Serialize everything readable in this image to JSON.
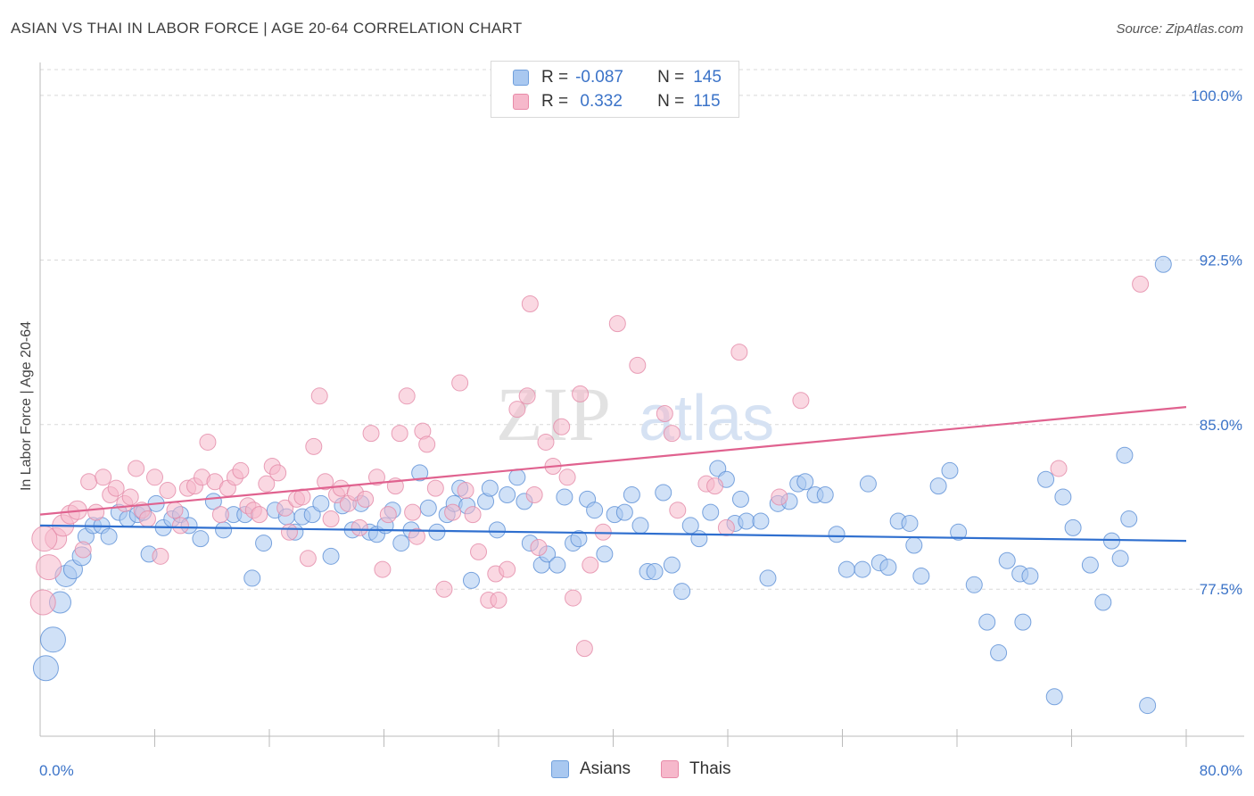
{
  "header": {
    "title": "ASIAN VS THAI IN LABOR FORCE | AGE 20-64 CORRELATION CHART",
    "source": "Source: ZipAtlas.com"
  },
  "watermark": {
    "zip": "ZIP",
    "atlas": "atlas"
  },
  "legend": {
    "rows": [
      {
        "r_label": "R =",
        "r_value": "-0.087",
        "n_label": "N =",
        "n_value": "145",
        "color": "#a9c8f0",
        "border": "#6f9fdc"
      },
      {
        "r_label": "R =",
        "r_value": " 0.332",
        "n_label": "N =",
        "n_value": "115",
        "color": "#f6b8cb",
        "border": "#e88aa8"
      }
    ]
  },
  "bottom_legend": {
    "asians": "Asians",
    "thais": "Thais"
  },
  "colors": {
    "asian_fill": "#a9c8f0",
    "asian_stroke": "#5b8fd6",
    "asian_line": "#2f6fcf",
    "thai_fill": "#f6b8cb",
    "thai_stroke": "#e48aa8",
    "thai_line": "#e0628f",
    "tick": "#3b73c8",
    "grid": "#d8d8d8"
  },
  "chart_data": {
    "type": "scatter",
    "title": "ASIAN VS THAI IN LABOR FORCE | AGE 20-64 CORRELATION CHART",
    "xlabel": "",
    "ylabel": "In Labor Force | Age 20-64",
    "xlim": [
      0,
      80
    ],
    "ylim": [
      70.8,
      101.5
    ],
    "x_tick_labels": [
      "0.0%",
      "80.0%"
    ],
    "y_ticks": [
      77.5,
      85.0,
      92.5,
      100.0
    ],
    "y_tick_labels": [
      "77.5%",
      "85.0%",
      "92.5%",
      "100.0%"
    ],
    "grid": true,
    "legend_position": "top-center",
    "series": [
      {
        "name": "Asians",
        "r": -0.087,
        "n": 145,
        "trend": [
          [
            0,
            80.4
          ],
          [
            80,
            79.7
          ]
        ],
        "points": [
          [
            0.4,
            73.9
          ],
          [
            0.9,
            75.2
          ],
          [
            1.4,
            76.9
          ],
          [
            1.8,
            78.1
          ],
          [
            2.3,
            78.4
          ],
          [
            2.9,
            79.0
          ],
          [
            3.2,
            79.9
          ],
          [
            3.7,
            80.4
          ],
          [
            4.3,
            80.4
          ],
          [
            4.8,
            79.9
          ],
          [
            5.5,
            81.0
          ],
          [
            6.1,
            80.7
          ],
          [
            6.8,
            80.9
          ],
          [
            7.2,
            81.0
          ],
          [
            7.6,
            79.1
          ],
          [
            8.1,
            81.4
          ],
          [
            8.6,
            80.3
          ],
          [
            9.2,
            80.7
          ],
          [
            9.8,
            80.9
          ],
          [
            10.4,
            80.4
          ],
          [
            11.2,
            79.8
          ],
          [
            12.1,
            81.5
          ],
          [
            12.8,
            80.2
          ],
          [
            13.5,
            80.9
          ],
          [
            14.3,
            80.9
          ],
          [
            14.8,
            78.0
          ],
          [
            15.6,
            79.6
          ],
          [
            16.4,
            81.1
          ],
          [
            17.2,
            80.8
          ],
          [
            17.8,
            80.1
          ],
          [
            18.3,
            80.8
          ],
          [
            19.0,
            80.9
          ],
          [
            19.6,
            81.4
          ],
          [
            20.3,
            79.0
          ],
          [
            21.1,
            81.3
          ],
          [
            21.8,
            80.2
          ],
          [
            22.4,
            81.4
          ],
          [
            23.0,
            80.1
          ],
          [
            23.5,
            80.0
          ],
          [
            24.1,
            80.4
          ],
          [
            24.6,
            81.1
          ],
          [
            25.2,
            79.6
          ],
          [
            25.9,
            80.2
          ],
          [
            26.5,
            82.8
          ],
          [
            27.1,
            81.2
          ],
          [
            27.7,
            80.1
          ],
          [
            28.4,
            80.9
          ],
          [
            28.9,
            81.4
          ],
          [
            29.3,
            82.1
          ],
          [
            29.8,
            81.3
          ],
          [
            30.1,
            77.9
          ],
          [
            31.1,
            81.5
          ],
          [
            31.4,
            82.1
          ],
          [
            31.9,
            80.2
          ],
          [
            32.6,
            81.8
          ],
          [
            33.3,
            82.6
          ],
          [
            33.8,
            81.5
          ],
          [
            34.2,
            79.6
          ],
          [
            35.0,
            78.6
          ],
          [
            35.4,
            79.1
          ],
          [
            36.1,
            78.6
          ],
          [
            36.6,
            81.7
          ],
          [
            37.2,
            79.6
          ],
          [
            37.6,
            79.8
          ],
          [
            38.2,
            81.6
          ],
          [
            38.7,
            81.1
          ],
          [
            39.4,
            79.1
          ],
          [
            40.1,
            80.9
          ],
          [
            40.8,
            81.0
          ],
          [
            41.3,
            81.8
          ],
          [
            41.9,
            80.4
          ],
          [
            42.4,
            78.3
          ],
          [
            42.9,
            78.3
          ],
          [
            43.5,
            81.9
          ],
          [
            44.1,
            78.6
          ],
          [
            44.8,
            77.4
          ],
          [
            45.4,
            80.4
          ],
          [
            46.0,
            79.8
          ],
          [
            46.8,
            81.0
          ],
          [
            47.3,
            83.0
          ],
          [
            47.9,
            82.5
          ],
          [
            48.5,
            80.5
          ],
          [
            48.9,
            81.6
          ],
          [
            49.3,
            80.6
          ],
          [
            50.3,
            80.6
          ],
          [
            50.8,
            78.0
          ],
          [
            51.5,
            81.4
          ],
          [
            52.3,
            81.5
          ],
          [
            52.9,
            82.3
          ],
          [
            53.4,
            82.4
          ],
          [
            54.1,
            81.8
          ],
          [
            54.8,
            81.8
          ],
          [
            55.6,
            80.0
          ],
          [
            56.3,
            78.4
          ],
          [
            57.4,
            78.4
          ],
          [
            57.8,
            82.3
          ],
          [
            58.6,
            78.7
          ],
          [
            59.2,
            78.5
          ],
          [
            59.9,
            80.6
          ],
          [
            60.7,
            80.5
          ],
          [
            61.0,
            79.5
          ],
          [
            61.5,
            78.1
          ],
          [
            62.7,
            82.2
          ],
          [
            63.5,
            82.9
          ],
          [
            64.1,
            80.1
          ],
          [
            65.2,
            77.7
          ],
          [
            66.1,
            76.0
          ],
          [
            66.9,
            74.6
          ],
          [
            67.5,
            78.8
          ],
          [
            68.4,
            78.2
          ],
          [
            68.6,
            76.0
          ],
          [
            69.1,
            78.1
          ],
          [
            70.2,
            82.5
          ],
          [
            70.8,
            72.6
          ],
          [
            71.4,
            81.7
          ],
          [
            72.1,
            80.3
          ],
          [
            73.3,
            78.6
          ],
          [
            74.2,
            76.9
          ],
          [
            74.8,
            79.7
          ],
          [
            75.4,
            78.9
          ],
          [
            75.7,
            83.6
          ],
          [
            76.0,
            80.7
          ],
          [
            77.3,
            72.2
          ],
          [
            78.4,
            92.3
          ]
        ]
      },
      {
        "name": "Thais",
        "r": 0.332,
        "n": 115,
        "trend": [
          [
            0,
            80.9
          ],
          [
            80,
            85.8
          ]
        ],
        "points": [
          [
            0.2,
            76.9
          ],
          [
            0.6,
            78.5
          ],
          [
            1.1,
            79.8
          ],
          [
            1.6,
            80.4
          ],
          [
            2.1,
            80.9
          ],
          [
            2.6,
            81.1
          ],
          [
            3.0,
            79.3
          ],
          [
            3.4,
            82.4
          ],
          [
            3.9,
            81.0
          ],
          [
            4.4,
            82.6
          ],
          [
            4.9,
            81.8
          ],
          [
            5.3,
            82.1
          ],
          [
            5.9,
            81.4
          ],
          [
            6.3,
            81.7
          ],
          [
            6.7,
            83.0
          ],
          [
            7.1,
            81.1
          ],
          [
            7.5,
            80.7
          ],
          [
            8.0,
            82.6
          ],
          [
            8.4,
            79.0
          ],
          [
            8.9,
            82.0
          ],
          [
            9.4,
            81.1
          ],
          [
            9.8,
            80.4
          ],
          [
            10.3,
            82.1
          ],
          [
            10.8,
            82.2
          ],
          [
            11.3,
            82.6
          ],
          [
            11.7,
            84.2
          ],
          [
            12.2,
            82.4
          ],
          [
            12.6,
            80.9
          ],
          [
            13.1,
            82.1
          ],
          [
            13.6,
            82.6
          ],
          [
            14.0,
            82.9
          ],
          [
            14.5,
            81.3
          ],
          [
            14.9,
            81.1
          ],
          [
            15.3,
            80.9
          ],
          [
            15.8,
            82.3
          ],
          [
            16.2,
            83.1
          ],
          [
            16.6,
            82.8
          ],
          [
            17.1,
            81.2
          ],
          [
            17.4,
            80.1
          ],
          [
            17.9,
            81.6
          ],
          [
            18.3,
            81.7
          ],
          [
            18.7,
            78.9
          ],
          [
            19.1,
            84.0
          ],
          [
            19.5,
            86.3
          ],
          [
            19.9,
            82.4
          ],
          [
            20.3,
            80.7
          ],
          [
            20.7,
            81.8
          ],
          [
            21.0,
            82.1
          ],
          [
            21.5,
            81.4
          ],
          [
            22.0,
            81.9
          ],
          [
            22.3,
            80.3
          ],
          [
            22.7,
            81.6
          ],
          [
            23.1,
            84.6
          ],
          [
            23.5,
            82.6
          ],
          [
            23.9,
            78.4
          ],
          [
            24.3,
            80.9
          ],
          [
            24.8,
            82.2
          ],
          [
            25.1,
            84.6
          ],
          [
            25.6,
            86.3
          ],
          [
            26.0,
            81.0
          ],
          [
            26.3,
            79.9
          ],
          [
            26.7,
            84.7
          ],
          [
            27.0,
            84.1
          ],
          [
            27.6,
            82.1
          ],
          [
            28.2,
            77.5
          ],
          [
            28.8,
            81.0
          ],
          [
            29.3,
            86.9
          ],
          [
            29.7,
            82.0
          ],
          [
            30.2,
            80.9
          ],
          [
            30.6,
            79.2
          ],
          [
            31.3,
            77.0
          ],
          [
            31.8,
            78.2
          ],
          [
            32.0,
            77.0
          ],
          [
            32.6,
            78.4
          ],
          [
            33.3,
            85.7
          ],
          [
            34.0,
            86.3
          ],
          [
            34.2,
            90.5
          ],
          [
            34.5,
            81.8
          ],
          [
            34.8,
            79.4
          ],
          [
            35.3,
            84.2
          ],
          [
            35.8,
            83.1
          ],
          [
            36.4,
            84.9
          ],
          [
            36.8,
            82.6
          ],
          [
            37.2,
            77.1
          ],
          [
            37.7,
            86.4
          ],
          [
            38.0,
            74.8
          ],
          [
            38.4,
            78.6
          ],
          [
            39.3,
            80.1
          ],
          [
            40.3,
            89.6
          ],
          [
            41.7,
            87.7
          ],
          [
            43.6,
            85.5
          ],
          [
            44.1,
            84.6
          ],
          [
            44.5,
            81.1
          ],
          [
            46.5,
            82.3
          ],
          [
            47.1,
            82.2
          ],
          [
            47.9,
            80.3
          ],
          [
            48.8,
            88.3
          ],
          [
            51.6,
            81.7
          ],
          [
            53.1,
            86.1
          ],
          [
            71.1,
            83.0
          ],
          [
            76.8,
            91.4
          ],
          [
            0.3,
            79.8
          ]
        ]
      }
    ]
  }
}
